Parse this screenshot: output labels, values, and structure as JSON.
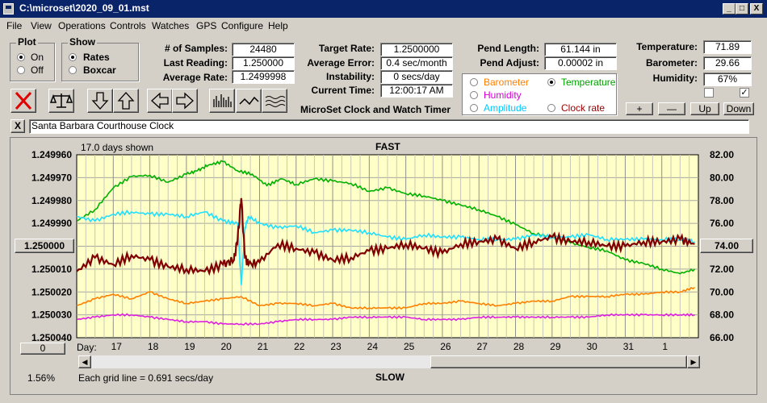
{
  "window": {
    "title": "C:\\microset\\2020_09_01.mst",
    "min": "_",
    "max": "□",
    "close": "X"
  },
  "menu": [
    "File",
    "View",
    "Operations",
    "Controls",
    "Watches",
    "GPS",
    "Configure",
    "Help"
  ],
  "plot": {
    "title": "Plot",
    "on": "On",
    "off": "Off"
  },
  "show": {
    "title": "Show",
    "rates": "Rates",
    "boxcar": "Boxcar"
  },
  "stats1": {
    "samples_label": "# of Samples:",
    "samples": "24480",
    "last_label": "Last Reading:",
    "last": "1.250000",
    "avg_label": "Average Rate:",
    "avg": "1.2499998"
  },
  "stats2": {
    "target_label": "Target Rate:",
    "target": "1.2500000",
    "avgerr_label": "Average Error:",
    "avgerr": "0.4 sec/month",
    "instab_label": "Instability:",
    "instab": "0 secs/day",
    "time_label": "Current Time:",
    "time": "12:00:17 AM",
    "app_name": "MicroSet Clock and Watch Timer"
  },
  "pend": {
    "len_label": "Pend Length:",
    "len": "61.144 in",
    "adj_label": "Pend Adjust:",
    "adj": "0.00002 in"
  },
  "series_sel": {
    "barometer": "Barometer",
    "temperature": "Temperature",
    "humidity": "Humidity",
    "amplitude": "Amplitude",
    "clockrate": "Clock rate"
  },
  "env": {
    "temp_label": "Temperature:",
    "temp": "71.89",
    "baro_label": "Barometer:",
    "baro": "29.66",
    "hum_label": "Humidity:",
    "hum": "67%"
  },
  "scale_btns": {
    "plus": "+",
    "minus": "—",
    "up": "Up",
    "down": "Down"
  },
  "clock_name": "Santa Barbara Courthouse Clock",
  "clear_btn": "X",
  "chart": {
    "days_shown": "17.0 days shown",
    "top_label": "FAST",
    "bottom_label": "SLOW",
    "center_btn": "1.250000",
    "right_btn": "74.00",
    "zero_btn": "0",
    "pct": "1.56%",
    "grid_note": "Each grid line = 0.691 secs/day",
    "day_label": "Day:"
  },
  "colors": {
    "bg": "#ffffc8",
    "rate": "#800000",
    "temp": "#00b000",
    "humidity": "#e020e0",
    "amp": "#20e0ff",
    "baro": "#ff8000",
    "grid": "#a8a8a0"
  },
  "chart_data": {
    "type": "line",
    "title": "",
    "x_ticks": [
      "17",
      "18",
      "19",
      "20",
      "21",
      "22",
      "23",
      "24",
      "25",
      "26",
      "27",
      "28",
      "29",
      "30",
      "31",
      "1"
    ],
    "y_left_ticks": [
      "1.249960",
      "1.249970",
      "1.249980",
      "1.249990",
      "1.250000",
      "1.250010",
      "1.250020",
      "1.250030",
      "1.250040"
    ],
    "y_right_ticks": [
      "82.00",
      "80.00",
      "78.00",
      "76.00",
      "74.00",
      "72.00",
      "70.00",
      "68.00",
      "66.00"
    ],
    "ylim_left": [
      1.24996,
      1.25004
    ],
    "ylim_right": [
      66,
      82
    ],
    "grid": true,
    "series": [
      {
        "name": "Temperature",
        "axis": "right",
        "color": "#00b000",
        "x": [
          16.0,
          16.5,
          17.0,
          17.5,
          18.0,
          18.5,
          19.0,
          19.3,
          19.6,
          20.0,
          20.4,
          20.8,
          21.2,
          21.6,
          22.0,
          22.5,
          23.0,
          23.5,
          24.0,
          24.5,
          25.0,
          25.5,
          26.0,
          26.5,
          27.0,
          27.5,
          28.0,
          28.5,
          29.0,
          29.5,
          30.0,
          30.5,
          31.0,
          31.5,
          32.0,
          32.5,
          32.9
        ],
        "y": [
          76.2,
          77.2,
          79.1,
          80.1,
          80.2,
          79.6,
          80.3,
          80.6,
          81.1,
          81.4,
          80.6,
          80.3,
          79.3,
          79.9,
          79.4,
          79.9,
          79.7,
          79.5,
          78.8,
          79.1,
          78.6,
          78.4,
          78.0,
          77.6,
          77.2,
          76.6,
          75.9,
          75.1,
          74.8,
          74.3,
          73.9,
          73.6,
          72.8,
          72.5,
          72.0,
          71.6,
          72.0
        ]
      },
      {
        "name": "Amplitude",
        "axis": "left",
        "color": "#20e0ff",
        "x": [
          16.0,
          16.5,
          17.0,
          17.5,
          18.0,
          18.5,
          19.0,
          19.5,
          20.0,
          20.4,
          20.5,
          20.6,
          20.7,
          21.0,
          21.5,
          22.0,
          22.5,
          23.0,
          23.5,
          24.0,
          24.5,
          25.0,
          25.5,
          26.0,
          26.5,
          27.0,
          27.5,
          28.0,
          28.5,
          29.0,
          29.5,
          30.0,
          30.5,
          31.0,
          31.5,
          32.0,
          32.5,
          32.9
        ],
        "y": [
          1.249987,
          1.249989,
          1.249986,
          1.249985,
          1.249986,
          1.249986,
          1.249987,
          1.249985,
          1.249989,
          1.24999,
          1.250017,
          1.249992,
          1.249987,
          1.24999,
          1.249992,
          1.249991,
          1.249994,
          1.249993,
          1.249993,
          1.249994,
          1.249996,
          1.249997,
          1.249995,
          1.249996,
          1.249996,
          1.249997,
          1.249997,
          1.249997,
          1.249995,
          1.249996,
          1.249996,
          1.249995,
          1.249997,
          1.249997,
          1.249997,
          1.249997,
          1.249997,
          1.249998
        ]
      },
      {
        "name": "Clock rate",
        "axis": "left",
        "color": "#800000",
        "x": [
          16.0,
          16.5,
          17.0,
          17.5,
          18.0,
          18.5,
          19.0,
          19.5,
          20.0,
          20.3,
          20.4,
          20.5,
          20.6,
          20.7,
          21.0,
          21.5,
          22.0,
          22.5,
          23.0,
          23.5,
          24.0,
          24.5,
          25.0,
          25.5,
          26.0,
          26.5,
          27.0,
          27.5,
          28.0,
          28.5,
          29.0,
          29.5,
          30.0,
          30.5,
          31.0,
          31.5,
          32.0,
          32.5,
          32.9
        ],
        "y": [
          1.250011,
          1.250005,
          1.250008,
          1.250004,
          1.250006,
          1.250009,
          1.25001,
          1.250011,
          1.250008,
          1.250006,
          1.249997,
          1.249979,
          1.250005,
          1.250008,
          1.250007,
          1.249999,
          1.250001,
          1.250003,
          1.250006,
          1.250005,
          1.250002,
          1.250001,
          1.249999,
          1.250001,
          1.250003,
          1.249999,
          1.249998,
          1.249997,
          1.250001,
          1.249998,
          1.249996,
          1.249998,
          1.249998,
          1.25,
          1.25,
          1.249998,
          1.249998,
          1.249997,
          1.249999
        ]
      },
      {
        "name": "Barometer",
        "axis": "left",
        "color": "#ff8000",
        "x": [
          16.0,
          16.5,
          17.0,
          17.5,
          18.0,
          18.5,
          19.0,
          19.5,
          20.0,
          20.5,
          21.0,
          21.5,
          22.0,
          22.5,
          23.0,
          23.5,
          24.0,
          24.5,
          25.0,
          25.5,
          26.0,
          26.5,
          27.0,
          27.5,
          28.0,
          28.5,
          29.0,
          29.5,
          30.0,
          30.5,
          31.0,
          31.5,
          32.0,
          32.5,
          32.9
        ],
        "y": [
          1.250026,
          1.250023,
          1.250021,
          1.250023,
          1.25002,
          1.250023,
          1.250025,
          1.250024,
          1.250023,
          1.250022,
          1.250026,
          1.250025,
          1.250025,
          1.250026,
          1.250025,
          1.250027,
          1.250027,
          1.250027,
          1.250027,
          1.250025,
          1.250025,
          1.250024,
          1.250025,
          1.250026,
          1.250025,
          1.250024,
          1.250024,
          1.250022,
          1.250022,
          1.250022,
          1.250021,
          1.250021,
          1.25002,
          1.25002,
          1.250018
        ]
      },
      {
        "name": "Humidity",
        "axis": "left",
        "color": "#e020e0",
        "x": [
          16.0,
          16.5,
          17.0,
          17.5,
          18.0,
          18.5,
          19.0,
          19.5,
          20.0,
          20.5,
          21.0,
          21.5,
          22.0,
          22.5,
          23.0,
          23.5,
          24.0,
          24.5,
          25.0,
          25.5,
          26.0,
          26.5,
          27.0,
          27.5,
          28.0,
          28.5,
          29.0,
          29.5,
          30.0,
          30.5,
          31.0,
          31.5,
          32.0,
          32.5,
          32.9
        ],
        "y": [
          1.250032,
          1.250031,
          1.25003,
          1.25003,
          1.250031,
          1.250032,
          1.250033,
          1.250033,
          1.250034,
          1.250034,
          1.250034,
          1.250033,
          1.250032,
          1.250032,
          1.250032,
          1.250031,
          1.250031,
          1.250031,
          1.250031,
          1.250032,
          1.250032,
          1.250032,
          1.250031,
          1.250031,
          1.250031,
          1.250031,
          1.250031,
          1.250031,
          1.250031,
          1.25003,
          1.25003,
          1.25003,
          1.25003,
          1.25003,
          1.25003
        ]
      }
    ]
  }
}
